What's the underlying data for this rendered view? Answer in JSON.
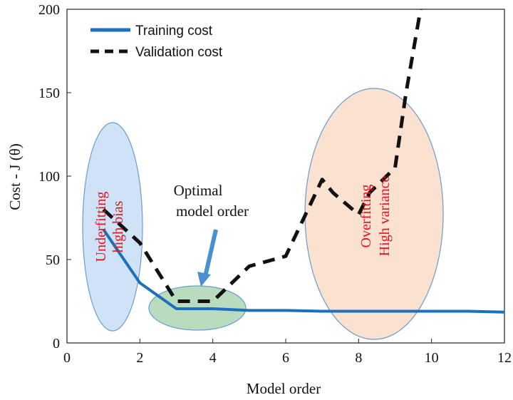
{
  "chart_data": {
    "type": "line",
    "xlabel": "Model order",
    "ylabel": "Cost - J (θ)",
    "xlim": [
      0,
      12
    ],
    "ylim": [
      0,
      200
    ],
    "xticks": [
      "0",
      "2",
      "4",
      "6",
      "8",
      "10",
      "12"
    ],
    "yticks": [
      "0",
      "50",
      "100",
      "150",
      "200"
    ],
    "grid": false,
    "legend_position": "top-left",
    "series": [
      {
        "name": "Training cost",
        "style": "solid",
        "color": "#1f6fbf",
        "x": [
          1,
          2,
          3,
          4,
          5,
          6,
          7,
          8,
          9,
          10,
          11,
          12
        ],
        "y": [
          68,
          36,
          20.5,
          20.5,
          19.5,
          19.5,
          19,
          19,
          19,
          19,
          19,
          18.5
        ]
      },
      {
        "name": "Validation cost",
        "style": "dashed",
        "color": "#111111",
        "x": [
          1,
          2,
          3,
          4,
          5,
          6,
          7,
          7.3,
          8,
          8.3,
          9,
          9.3,
          9.7
        ],
        "y": [
          80,
          60,
          25,
          25,
          46,
          52,
          98,
          90,
          77,
          90,
          105,
          150,
          200
        ]
      }
    ],
    "regions": [
      {
        "name": "underfitting",
        "fill": "#cfe2f6",
        "stroke": "#6a9bd0"
      },
      {
        "name": "optimal",
        "fill": "#b9dcbf",
        "stroke": "#6a9bd0"
      },
      {
        "name": "overfitting",
        "fill": "#fbe1d0",
        "stroke": "#6a9bd0"
      }
    ],
    "annotations": {
      "underfitting": [
        "Underfitting",
        "high bias"
      ],
      "optimal": [
        "Optimal",
        "model order"
      ],
      "overfitting": [
        "Overfitting",
        "High variance"
      ]
    },
    "arrow_color": "#4a90d0"
  }
}
